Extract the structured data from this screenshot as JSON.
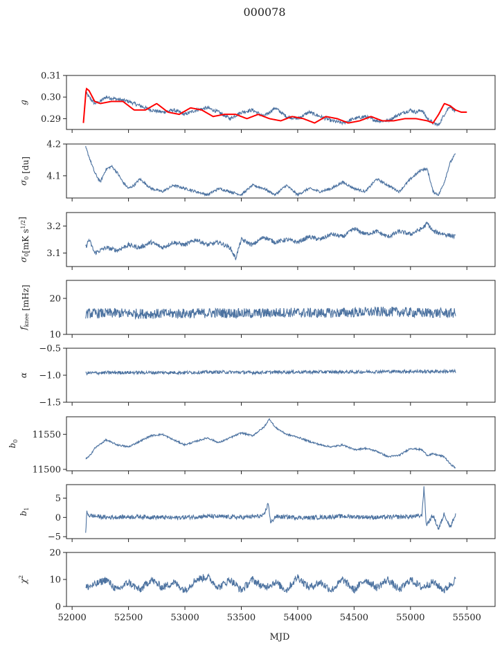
{
  "figure": {
    "title": "000078",
    "xlabel": "MJD",
    "series_color": "#4c72a0",
    "fit_color": "#ff0000"
  },
  "chart_data": [
    {
      "type": "line",
      "ylabel": "g",
      "xlim": [
        51950,
        55750
      ],
      "ylim": [
        0.285,
        0.31
      ],
      "yticks": [
        0.31,
        0.3,
        0.29
      ],
      "ytick_labels": [
        "0.31",
        "0.30",
        "0.29"
      ],
      "series": [
        {
          "x": [
            52120,
            52150,
            52200,
            52250,
            52300,
            52400,
            52500,
            52600,
            52700,
            52800,
            52900,
            53000,
            53100,
            53200,
            53300,
            53400,
            53500,
            53600,
            53700,
            53800,
            53900,
            54000,
            54100,
            54200,
            54300,
            54400,
            54500,
            54600,
            54700,
            54800,
            54900,
            55000,
            55050,
            55100,
            55150,
            55200,
            55250,
            55300,
            55350,
            55400
          ],
          "y": [
            0.302,
            0.3,
            0.297,
            0.298,
            0.3,
            0.299,
            0.298,
            0.296,
            0.294,
            0.293,
            0.294,
            0.292,
            0.294,
            0.295,
            0.293,
            0.29,
            0.293,
            0.294,
            0.291,
            0.295,
            0.291,
            0.29,
            0.293,
            0.291,
            0.289,
            0.288,
            0.29,
            0.291,
            0.289,
            0.289,
            0.292,
            0.294,
            0.293,
            0.294,
            0.29,
            0.288,
            0.287,
            0.292,
            0.296,
            0.293
          ]
        },
        {
          "x": [
            52100,
            52125,
            52150,
            52200,
            52250,
            52350,
            52450,
            52550,
            52650,
            52750,
            52850,
            52950,
            53050,
            53150,
            53250,
            53350,
            53450,
            53550,
            53650,
            53750,
            53850,
            53950,
            54050,
            54150,
            54250,
            54350,
            54450,
            54550,
            54650,
            54750,
            54850,
            54950,
            55050,
            55150,
            55200,
            55250,
            55300,
            55350,
            55400,
            55450,
            55500
          ],
          "y": [
            0.288,
            0.304,
            0.303,
            0.298,
            0.297,
            0.298,
            0.298,
            0.294,
            0.294,
            0.297,
            0.293,
            0.292,
            0.295,
            0.294,
            0.291,
            0.292,
            0.292,
            0.29,
            0.292,
            0.29,
            0.289,
            0.291,
            0.29,
            0.288,
            0.291,
            0.29,
            0.288,
            0.289,
            0.291,
            0.289,
            0.289,
            0.29,
            0.29,
            0.289,
            0.288,
            0.292,
            0.297,
            0.296,
            0.294,
            0.293,
            0.293
          ]
        }
      ]
    },
    {
      "type": "line",
      "ylabel": "σ0 [du]",
      "xlim": [
        51950,
        55750
      ],
      "ylim": [
        4.03,
        4.2
      ],
      "yticks": [
        4.2,
        4.1
      ],
      "ytick_labels": [
        "4.2",
        "4.1"
      ],
      "series": [
        {
          "x": [
            52120,
            52150,
            52200,
            52250,
            52300,
            52350,
            52400,
            52450,
            52500,
            52550,
            52600,
            52700,
            52800,
            52900,
            53000,
            53100,
            53200,
            53300,
            53400,
            53500,
            53600,
            53700,
            53800,
            53900,
            54000,
            54100,
            54200,
            54300,
            54400,
            54500,
            54600,
            54700,
            54800,
            54900,
            55000,
            55100,
            55150,
            55200,
            55250,
            55300,
            55350,
            55400
          ],
          "y": [
            4.19,
            4.16,
            4.11,
            4.08,
            4.12,
            4.13,
            4.11,
            4.08,
            4.06,
            4.07,
            4.09,
            4.06,
            4.05,
            4.07,
            4.06,
            4.05,
            4.04,
            4.06,
            4.05,
            4.04,
            4.07,
            4.06,
            4.04,
            4.07,
            4.04,
            4.06,
            4.05,
            4.06,
            4.08,
            4.06,
            4.05,
            4.09,
            4.07,
            4.05,
            4.09,
            4.12,
            4.12,
            4.05,
            4.04,
            4.08,
            4.14,
            4.17
          ]
        }
      ]
    },
    {
      "type": "line",
      "ylabel": "σ0[mK s^1/2]",
      "xlim": [
        51950,
        55750
      ],
      "ylim": [
        3.05,
        3.25
      ],
      "yticks": [
        3.2,
        3.1
      ],
      "ytick_labels": [
        "3.2",
        "3.1"
      ],
      "series": [
        {
          "x": [
            52120,
            52150,
            52200,
            52300,
            52400,
            52500,
            52600,
            52700,
            52800,
            52900,
            53000,
            53100,
            53200,
            53300,
            53400,
            53450,
            53500,
            53600,
            53700,
            53800,
            53900,
            54000,
            54100,
            54200,
            54300,
            54400,
            54500,
            54600,
            54700,
            54800,
            54900,
            55000,
            55100,
            55150,
            55200,
            55300,
            55400
          ],
          "y": [
            3.12,
            3.15,
            3.1,
            3.12,
            3.11,
            3.13,
            3.12,
            3.14,
            3.12,
            3.14,
            3.13,
            3.15,
            3.13,
            3.14,
            3.12,
            3.08,
            3.15,
            3.13,
            3.16,
            3.14,
            3.15,
            3.14,
            3.16,
            3.15,
            3.17,
            3.16,
            3.19,
            3.17,
            3.18,
            3.16,
            3.18,
            3.17,
            3.19,
            3.21,
            3.18,
            3.17,
            3.16
          ]
        }
      ]
    },
    {
      "type": "line",
      "ylabel": "fknee [mHz]",
      "xlim": [
        51950,
        55750
      ],
      "ylim": [
        10,
        25
      ],
      "yticks": [
        20,
        10
      ],
      "ytick_labels": [
        "20",
        "10"
      ],
      "series": [
        {
          "x": [
            52120,
            52400,
            52700,
            53000,
            53300,
            53600,
            53900,
            54200,
            54500,
            54800,
            55100,
            55400
          ],
          "y": [
            15.8,
            15.9,
            15.7,
            15.8,
            16.0,
            15.8,
            16.1,
            15.9,
            16.1,
            16.3,
            16.0,
            15.9
          ]
        }
      ]
    },
    {
      "type": "line",
      "ylabel": "α",
      "xlim": [
        51950,
        55750
      ],
      "ylim": [
        -1.5,
        -0.5
      ],
      "yticks": [
        -0.5,
        -1.0,
        -1.5
      ],
      "ytick_labels": [
        "−0.5",
        "−1.0",
        "−1.5"
      ],
      "series": [
        {
          "x": [
            52120,
            52400,
            52700,
            53000,
            53300,
            53600,
            53900,
            54200,
            54500,
            54800,
            55100,
            55400
          ],
          "y": [
            -0.96,
            -0.95,
            -0.95,
            -0.95,
            -0.94,
            -0.95,
            -0.94,
            -0.94,
            -0.94,
            -0.93,
            -0.93,
            -0.93
          ]
        }
      ]
    },
    {
      "type": "line",
      "ylabel": "b0",
      "xlim": [
        51950,
        55750
      ],
      "ylim": [
        11498,
        11575
      ],
      "yticks": [
        11550,
        11500
      ],
      "ytick_labels": [
        "11550",
        "11500"
      ],
      "series": [
        {
          "x": [
            52120,
            52150,
            52200,
            52300,
            52400,
            52500,
            52600,
            52700,
            52800,
            52900,
            53000,
            53100,
            53200,
            53300,
            53400,
            53500,
            53600,
            53700,
            53750,
            53800,
            53900,
            54000,
            54100,
            54200,
            54300,
            54400,
            54500,
            54600,
            54700,
            54800,
            54900,
            55000,
            55100,
            55150,
            55200,
            55300,
            55350,
            55400
          ],
          "y": [
            11515,
            11518,
            11530,
            11542,
            11535,
            11532,
            11540,
            11548,
            11550,
            11542,
            11535,
            11540,
            11545,
            11538,
            11545,
            11552,
            11548,
            11560,
            11572,
            11560,
            11550,
            11546,
            11540,
            11535,
            11532,
            11535,
            11528,
            11530,
            11526,
            11518,
            11520,
            11530,
            11528,
            11520,
            11522,
            11518,
            11508,
            11502
          ]
        }
      ]
    },
    {
      "type": "line",
      "ylabel": "b1",
      "xlim": [
        51950,
        55750
      ],
      "ylim": [
        -5.5,
        8.5
      ],
      "yticks": [
        5,
        0,
        -5
      ],
      "ytick_labels": [
        "5",
        "0",
        "−5"
      ],
      "series": [
        {
          "x": [
            52120,
            52130,
            52150,
            52300,
            52600,
            52900,
            53200,
            53500,
            53700,
            53740,
            53760,
            53800,
            54100,
            54400,
            54700,
            55000,
            55100,
            55120,
            55140,
            55200,
            55250,
            55300,
            55350,
            55400
          ],
          "y": [
            -4.5,
            1.5,
            0.5,
            0.0,
            0.2,
            -0.1,
            0.3,
            0.0,
            0.4,
            3.8,
            -1.5,
            0.2,
            -0.1,
            0.3,
            0.0,
            0.2,
            0.4,
            7.8,
            -2.0,
            0.5,
            -3.0,
            1.0,
            -2.5,
            0.8
          ]
        }
      ]
    },
    {
      "type": "line",
      "ylabel": "χ2",
      "xlim": [
        51950,
        55750
      ],
      "ylim": [
        0,
        20
      ],
      "yticks": [
        20,
        10,
        0
      ],
      "ytick_labels": [
        "20",
        "10",
        "0"
      ],
      "series": [
        {
          "x": [
            52120,
            52200,
            52300,
            52400,
            52500,
            52600,
            52700,
            52800,
            52900,
            53000,
            53100,
            53200,
            53300,
            53400,
            53500,
            53600,
            53700,
            53800,
            53900,
            54000,
            54100,
            54200,
            54300,
            54400,
            54500,
            54600,
            54700,
            54800,
            54900,
            55000,
            55100,
            55200,
            55300,
            55400
          ],
          "y": [
            7,
            8,
            10,
            6,
            9,
            6,
            10,
            7,
            9,
            6,
            10,
            11,
            7,
            10,
            6,
            10,
            7,
            9,
            6,
            11,
            7,
            9,
            6,
            10,
            6,
            10,
            7,
            10,
            6,
            10,
            7,
            9,
            6,
            10
          ]
        }
      ]
    }
  ],
  "xaxis": {
    "ticks": [
      52000,
      52500,
      53000,
      53500,
      54000,
      54500,
      55000,
      55500
    ],
    "tick_labels": [
      "52000",
      "52500",
      "53000",
      "53500",
      "54000",
      "54500",
      "55000",
      "55500"
    ]
  }
}
